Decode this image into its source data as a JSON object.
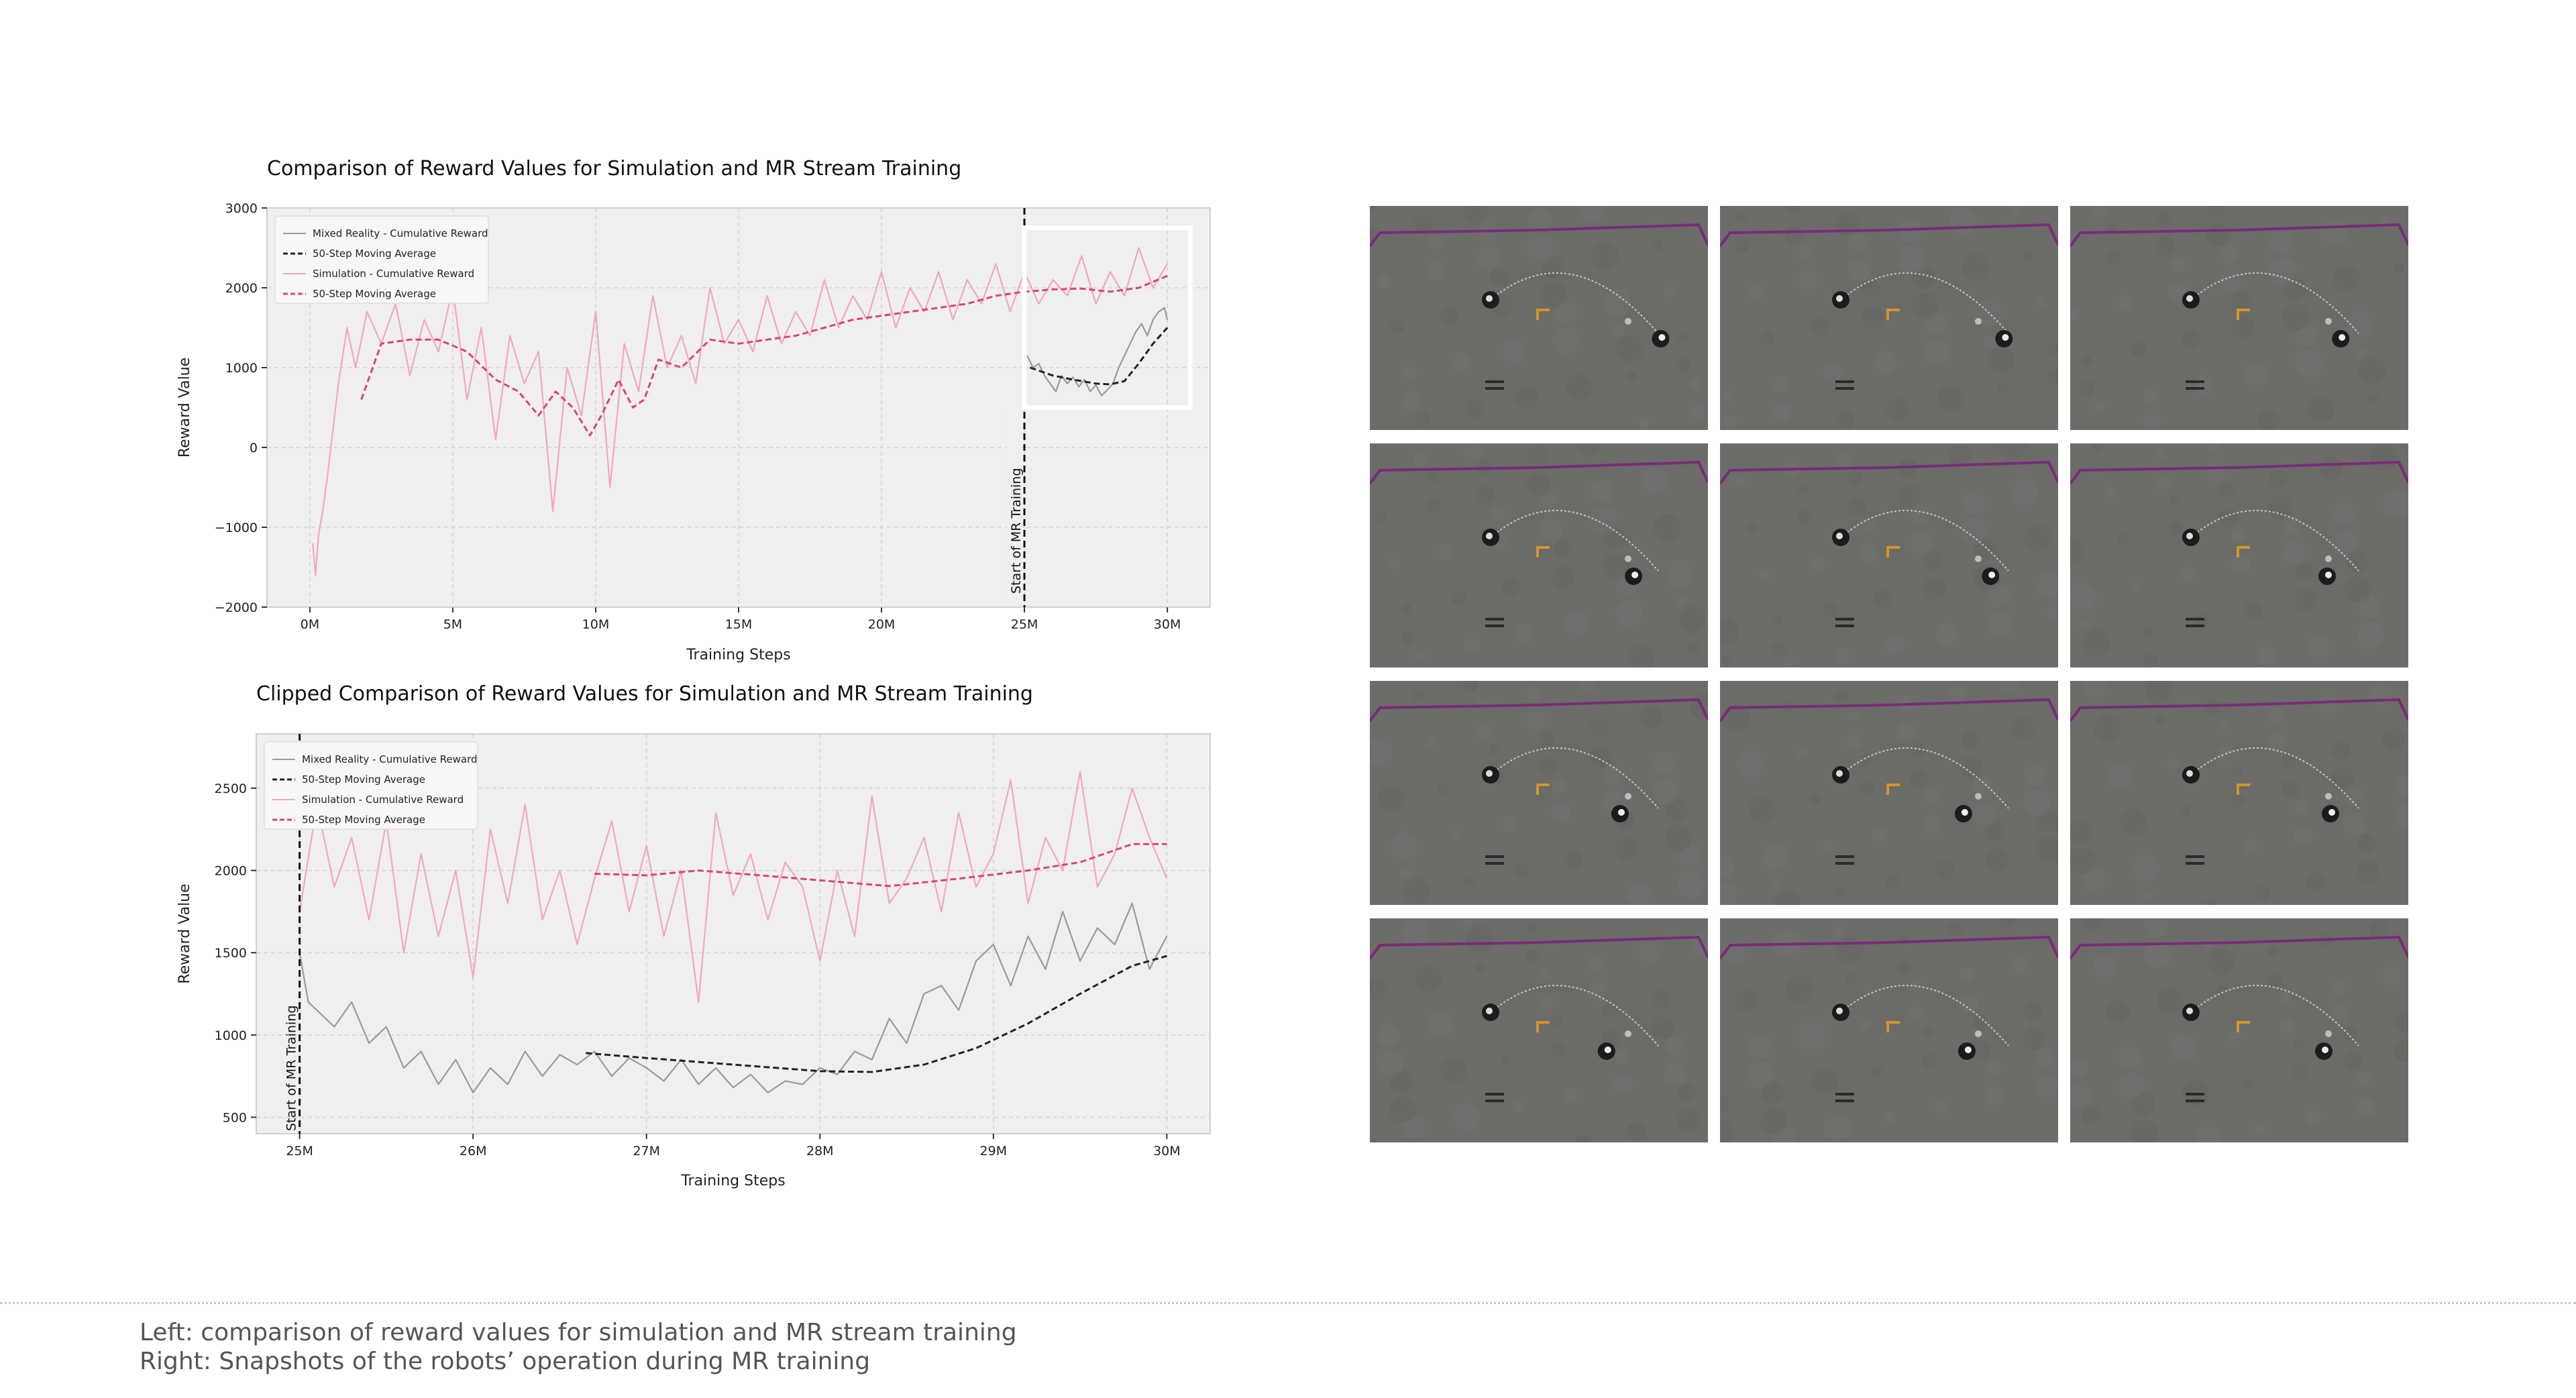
{
  "captions": {
    "line1": "Left: comparison of reward values for simulation and MR stream training",
    "line2": "Right: Snapshots of the robots’ operation during MR training"
  },
  "snapshots": {
    "count": 12,
    "columns": 3,
    "rows": 4,
    "colors": {
      "floor": "#6b6b68",
      "boundary": "#7a2a7a",
      "marker": "#d4952a"
    },
    "robot_x_fractions": [
      0.86,
      0.84,
      0.8,
      0.78,
      0.8,
      0.76,
      0.74,
      0.72,
      0.77,
      0.7,
      0.73,
      0.75
    ]
  },
  "chart_data": [
    {
      "type": "line",
      "title": "Comparison of Reward Values for Simulation and MR Stream Training",
      "xlabel": "Training Steps",
      "ylabel": "Reward Value",
      "xlim": [
        -1.5,
        31.5
      ],
      "ylim": [
        -2000,
        3000
      ],
      "x_ticks": [
        0,
        5,
        10,
        15,
        20,
        25,
        30
      ],
      "x_tick_labels": [
        "0M",
        "5M",
        "10M",
        "15M",
        "20M",
        "25M",
        "30M"
      ],
      "y_ticks": [
        -2000,
        -1000,
        0,
        1000,
        2000,
        3000
      ],
      "y_tick_labels": [
        "−2000",
        "−1000",
        "0",
        "1000",
        "2000",
        "3000"
      ],
      "grid": true,
      "legend_placement": "top-left",
      "vline": {
        "x": 25,
        "label": "Start of MR Training"
      },
      "highlight_box": {
        "x": [
          25,
          30.8
        ],
        "y": [
          500,
          2750
        ]
      },
      "series": [
        {
          "name": "Mixed Reality - Cumulative Reward",
          "style": "solid",
          "color": "#9a9a9a",
          "x": [
            25.1,
            25.3,
            25.5,
            25.7,
            25.9,
            26.1,
            26.3,
            26.5,
            26.7,
            26.9,
            27.1,
            27.3,
            27.5,
            27.7,
            27.9,
            28.1,
            28.3,
            28.5,
            28.7,
            28.9,
            29.1,
            29.3,
            29.5,
            29.7,
            29.9,
            30.0
          ],
          "y": [
            1150,
            1000,
            1050,
            900,
            800,
            700,
            900,
            800,
            880,
            760,
            850,
            700,
            780,
            650,
            720,
            800,
            1000,
            1150,
            1300,
            1450,
            1550,
            1400,
            1600,
            1700,
            1750,
            1600
          ]
        },
        {
          "name": "50-Step Moving Average",
          "style": "dashed",
          "color": "#222222",
          "x": [
            25.2,
            26.0,
            26.7,
            27.5,
            28.0,
            28.5,
            29.0,
            29.5,
            30.0
          ],
          "y": [
            1000,
            900,
            850,
            800,
            790,
            830,
            1050,
            1300,
            1500
          ]
        },
        {
          "name": "Simulation - Cumulative Reward",
          "style": "solid",
          "color": "#f4a6bc",
          "x": [
            0.1,
            0.2,
            0.3,
            0.45,
            0.6,
            0.8,
            1.0,
            1.3,
            1.6,
            2.0,
            2.5,
            3.0,
            3.5,
            4.0,
            4.5,
            5.0,
            5.5,
            6.0,
            6.5,
            7.0,
            7.5,
            8.0,
            8.5,
            9.0,
            9.5,
            10.0,
            10.5,
            11.0,
            11.5,
            12.0,
            12.5,
            13.0,
            13.5,
            14.0,
            14.5,
            15.0,
            15.5,
            16.0,
            16.5,
            17.0,
            17.5,
            18.0,
            18.5,
            19.0,
            19.5,
            20.0,
            20.5,
            21.0,
            21.5,
            22.0,
            22.5,
            23.0,
            23.5,
            24.0,
            24.5,
            25.0,
            25.5,
            26.0,
            26.5,
            27.0,
            27.5,
            28.0,
            28.5,
            29.0,
            29.5,
            30.0
          ],
          "y": [
            -1200,
            -1600,
            -1100,
            -800,
            -400,
            200,
            800,
            1500,
            1000,
            1700,
            1300,
            1800,
            900,
            1600,
            1200,
            2000,
            600,
            1500,
            100,
            1400,
            800,
            1200,
            -800,
            1000,
            400,
            1700,
            -500,
            1300,
            700,
            1900,
            1000,
            1400,
            800,
            2000,
            1300,
            1600,
            1200,
            1900,
            1300,
            1700,
            1400,
            2100,
            1500,
            1900,
            1600,
            2200,
            1500,
            2000,
            1700,
            2200,
            1600,
            2100,
            1800,
            2300,
            1700,
            2200,
            1800,
            2100,
            1900,
            2400,
            1800,
            2200,
            1900,
            2500,
            2000,
            2300
          ]
        },
        {
          "name": "50-Step Moving Average",
          "style": "dashed",
          "color": "#e0407a",
          "x": [
            1.8,
            2.5,
            3.5,
            4.5,
            5.5,
            6.5,
            7.3,
            8.0,
            8.6,
            9.2,
            9.8,
            10.2,
            10.8,
            11.3,
            11.7,
            12.2,
            13.0,
            14.0,
            15.0,
            16.0,
            17.0,
            18.0,
            19.0,
            20.0,
            21.0,
            22.0,
            23.0,
            24.0,
            25.0,
            26.0,
            27.0,
            28.0,
            29.0,
            30.0
          ],
          "y": [
            600,
            1300,
            1350,
            1350,
            1200,
            850,
            700,
            400,
            700,
            500,
            150,
            400,
            850,
            500,
            600,
            1100,
            1000,
            1350,
            1300,
            1350,
            1400,
            1500,
            1600,
            1650,
            1700,
            1750,
            1800,
            1900,
            1950,
            1980,
            1990,
            1950,
            2000,
            2150
          ]
        }
      ]
    },
    {
      "type": "line",
      "title": "Clipped Comparison of Reward Values for Simulation and MR Stream Training",
      "xlabel": "Training Steps",
      "ylabel": "Reward Value",
      "xlim": [
        24.75,
        30.25
      ],
      "ylim": [
        400,
        2830
      ],
      "x_ticks": [
        25,
        26,
        27,
        28,
        29,
        30
      ],
      "x_tick_labels": [
        "25M",
        "26M",
        "27M",
        "28M",
        "29M",
        "30M"
      ],
      "y_ticks": [
        500,
        1000,
        1500,
        2000,
        2500
      ],
      "y_tick_labels": [
        "500",
        "1000",
        "1500",
        "2000",
        "2500"
      ],
      "grid": true,
      "legend_placement": "top-left",
      "vline": {
        "x": 25,
        "label": "Start of MR Training"
      },
      "series": [
        {
          "name": "Mixed Reality - Cumulative Reward",
          "style": "solid",
          "color": "#9a9a9a",
          "x": [
            25.0,
            25.05,
            25.1,
            25.2,
            25.3,
            25.4,
            25.5,
            25.6,
            25.7,
            25.8,
            25.9,
            26.0,
            26.1,
            26.2,
            26.3,
            26.4,
            26.5,
            26.6,
            26.7,
            26.8,
            26.9,
            27.0,
            27.1,
            27.2,
            27.3,
            27.4,
            27.5,
            27.6,
            27.7,
            27.8,
            27.9,
            28.0,
            28.1,
            28.2,
            28.3,
            28.4,
            28.5,
            28.6,
            28.7,
            28.8,
            28.9,
            29.0,
            29.1,
            29.2,
            29.3,
            29.4,
            29.5,
            29.6,
            29.7,
            29.8,
            29.9,
            30.0
          ],
          "y": [
            1500,
            1200,
            1150,
            1050,
            1200,
            950,
            1050,
            800,
            900,
            700,
            850,
            650,
            800,
            700,
            900,
            750,
            880,
            820,
            900,
            750,
            860,
            800,
            720,
            850,
            700,
            800,
            680,
            760,
            650,
            720,
            700,
            800,
            760,
            900,
            850,
            1100,
            950,
            1250,
            1300,
            1150,
            1450,
            1550,
            1300,
            1600,
            1400,
            1750,
            1450,
            1650,
            1550,
            1800,
            1400,
            1600
          ]
        },
        {
          "name": "50-Step Moving Average",
          "style": "dashed",
          "color": "#222222",
          "x": [
            26.65,
            27.0,
            27.5,
            28.0,
            28.3,
            28.6,
            28.9,
            29.2,
            29.5,
            29.8,
            30.0
          ],
          "y": [
            890,
            860,
            820,
            780,
            775,
            820,
            920,
            1070,
            1250,
            1420,
            1480
          ]
        },
        {
          "name": "Simulation - Cumulative Reward",
          "style": "solid",
          "color": "#f4a6bc",
          "x": [
            25.0,
            25.1,
            25.2,
            25.3,
            25.4,
            25.5,
            25.6,
            25.7,
            25.8,
            25.9,
            26.0,
            26.1,
            26.2,
            26.3,
            26.4,
            26.5,
            26.6,
            26.7,
            26.8,
            26.9,
            27.0,
            27.1,
            27.2,
            27.3,
            27.4,
            27.5,
            27.6,
            27.7,
            27.8,
            27.9,
            28.0,
            28.1,
            28.2,
            28.3,
            28.4,
            28.5,
            28.6,
            28.7,
            28.8,
            28.9,
            29.0,
            29.1,
            29.2,
            29.3,
            29.4,
            29.5,
            29.6,
            29.7,
            29.8,
            29.9,
            30.0
          ],
          "y": [
            1750,
            2400,
            1900,
            2200,
            1700,
            2300,
            1500,
            2100,
            1600,
            2000,
            1350,
            2250,
            1800,
            2400,
            1700,
            2000,
            1550,
            1950,
            2300,
            1750,
            2150,
            1600,
            2000,
            1200,
            2350,
            1850,
            2100,
            1700,
            2050,
            1900,
            1450,
            2000,
            1600,
            2450,
            1800,
            1950,
            2200,
            1750,
            2350,
            1900,
            2100,
            2550,
            1800,
            2200,
            2000,
            2600,
            1900,
            2100,
            2500,
            2200,
            1950
          ]
        },
        {
          "name": "50-Step Moving Average",
          "style": "dashed",
          "color": "#e0407a",
          "x": [
            26.7,
            27.0,
            27.3,
            27.6,
            28.0,
            28.4,
            28.8,
            29.2,
            29.5,
            29.8,
            30.0
          ],
          "y": [
            1980,
            1970,
            2000,
            1975,
            1940,
            1905,
            1950,
            2000,
            2050,
            2160,
            2160
          ]
        }
      ]
    }
  ]
}
